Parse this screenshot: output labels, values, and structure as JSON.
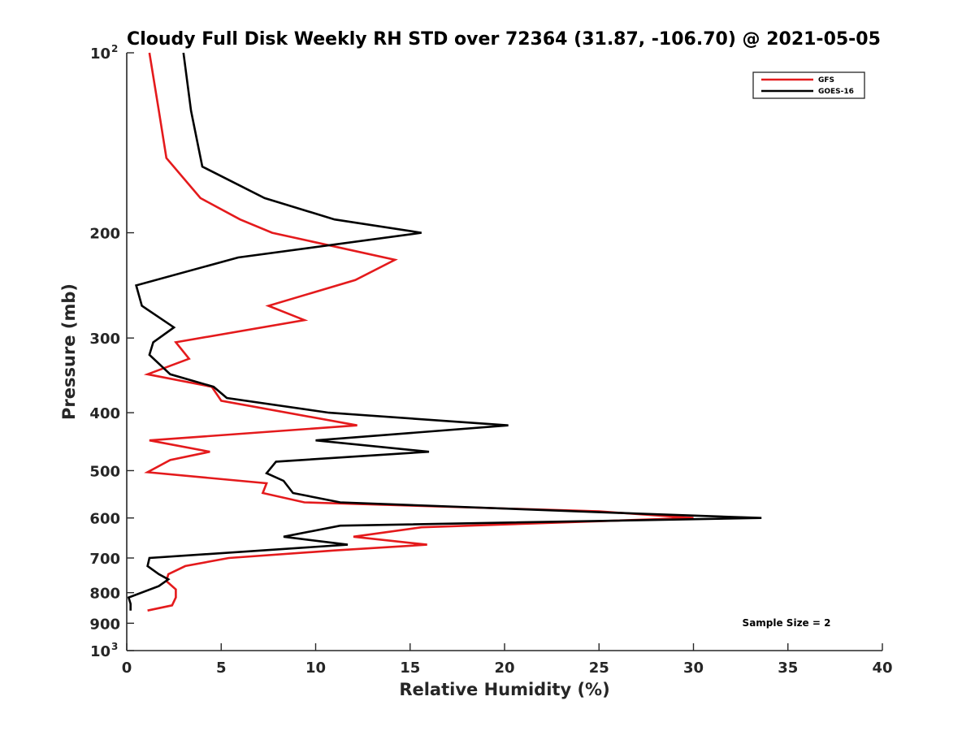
{
  "chart_data": {
    "type": "line",
    "title": "Cloudy Full Disk Weekly RH STD over 72364 (31.87, -106.70) @ 2021-05-05",
    "xlabel": "Relative Humidity (%)",
    "ylabel": "Pressure (mb)",
    "xlim": [
      0,
      40
    ],
    "ylim": [
      100,
      1000
    ],
    "y_scale": "log",
    "y_reversed": true,
    "grid": false,
    "legend_position": "top-right",
    "x_ticks": [
      {
        "value": 0,
        "label": "0"
      },
      {
        "value": 5,
        "label": "5"
      },
      {
        "value": 10,
        "label": "10"
      },
      {
        "value": 15,
        "label": "15"
      },
      {
        "value": 20,
        "label": "20"
      },
      {
        "value": 25,
        "label": "25"
      },
      {
        "value": 30,
        "label": "30"
      },
      {
        "value": 35,
        "label": "35"
      },
      {
        "value": 40,
        "label": "40"
      }
    ],
    "y_ticks": [
      {
        "value": 100,
        "label": "10",
        "sup": "2"
      },
      {
        "value": 200,
        "label": "200",
        "sup": ""
      },
      {
        "value": 300,
        "label": "300",
        "sup": ""
      },
      {
        "value": 400,
        "label": "400",
        "sup": ""
      },
      {
        "value": 500,
        "label": "500",
        "sup": ""
      },
      {
        "value": 600,
        "label": "600",
        "sup": ""
      },
      {
        "value": 700,
        "label": "700",
        "sup": ""
      },
      {
        "value": 800,
        "label": "800",
        "sup": ""
      },
      {
        "value": 900,
        "label": "900",
        "sup": ""
      },
      {
        "value": 1000,
        "label": "10",
        "sup": "3"
      }
    ],
    "series": [
      {
        "name": "GFS",
        "color": "#e41a1c",
        "points": [
          [
            1.2,
            100
          ],
          [
            1.7,
            125
          ],
          [
            2.1,
            150
          ],
          [
            3.9,
            175
          ],
          [
            6.0,
            190
          ],
          [
            7.7,
            200
          ],
          [
            14.2,
            222
          ],
          [
            12.1,
            240
          ],
          [
            7.5,
            265
          ],
          [
            9.4,
            280
          ],
          [
            2.6,
            305
          ],
          [
            3.3,
            325
          ],
          [
            1.1,
            345
          ],
          [
            4.5,
            362
          ],
          [
            5.0,
            382
          ],
          [
            12.2,
            420
          ],
          [
            1.2,
            445
          ],
          [
            4.4,
            465
          ],
          [
            2.3,
            480
          ],
          [
            1.1,
            503
          ],
          [
            7.4,
            525
          ],
          [
            7.2,
            545
          ],
          [
            9.4,
            565
          ],
          [
            25.0,
            585
          ],
          [
            30.0,
            600
          ],
          [
            15.6,
            622
          ],
          [
            12.0,
            645
          ],
          [
            15.9,
            665
          ],
          [
            11.0,
            680
          ],
          [
            5.4,
            700
          ],
          [
            3.1,
            722
          ],
          [
            2.2,
            745
          ],
          [
            2.1,
            765
          ],
          [
            2.6,
            790
          ],
          [
            2.6,
            815
          ],
          [
            2.4,
            840
          ],
          [
            1.1,
            857
          ]
        ]
      },
      {
        "name": "GOES-16",
        "color": "#000000",
        "points": [
          [
            3.0,
            100
          ],
          [
            3.4,
            125
          ],
          [
            4.0,
            155
          ],
          [
            7.3,
            175
          ],
          [
            11.0,
            190
          ],
          [
            15.6,
            200
          ],
          [
            5.9,
            220
          ],
          [
            0.5,
            245
          ],
          [
            0.8,
            265
          ],
          [
            2.5,
            288
          ],
          [
            1.4,
            305
          ],
          [
            1.2,
            320
          ],
          [
            2.3,
            345
          ],
          [
            4.6,
            362
          ],
          [
            5.3,
            378
          ],
          [
            10.7,
            400
          ],
          [
            20.2,
            420
          ],
          [
            10.0,
            445
          ],
          [
            16.0,
            465
          ],
          [
            7.9,
            483
          ],
          [
            7.4,
            505
          ],
          [
            8.3,
            520
          ],
          [
            8.8,
            545
          ],
          [
            11.3,
            565
          ],
          [
            27.0,
            590
          ],
          [
            33.6,
            600
          ],
          [
            11.3,
            618
          ],
          [
            8.3,
            645
          ],
          [
            11.7,
            665
          ],
          [
            1.2,
            700
          ],
          [
            1.1,
            722
          ],
          [
            1.7,
            745
          ],
          [
            2.2,
            760
          ],
          [
            1.7,
            780
          ],
          [
            0.1,
            815
          ],
          [
            0.2,
            835
          ],
          [
            0.2,
            857
          ]
        ]
      }
    ],
    "annotations": [
      {
        "text": "Sample Size = 2"
      }
    ]
  }
}
